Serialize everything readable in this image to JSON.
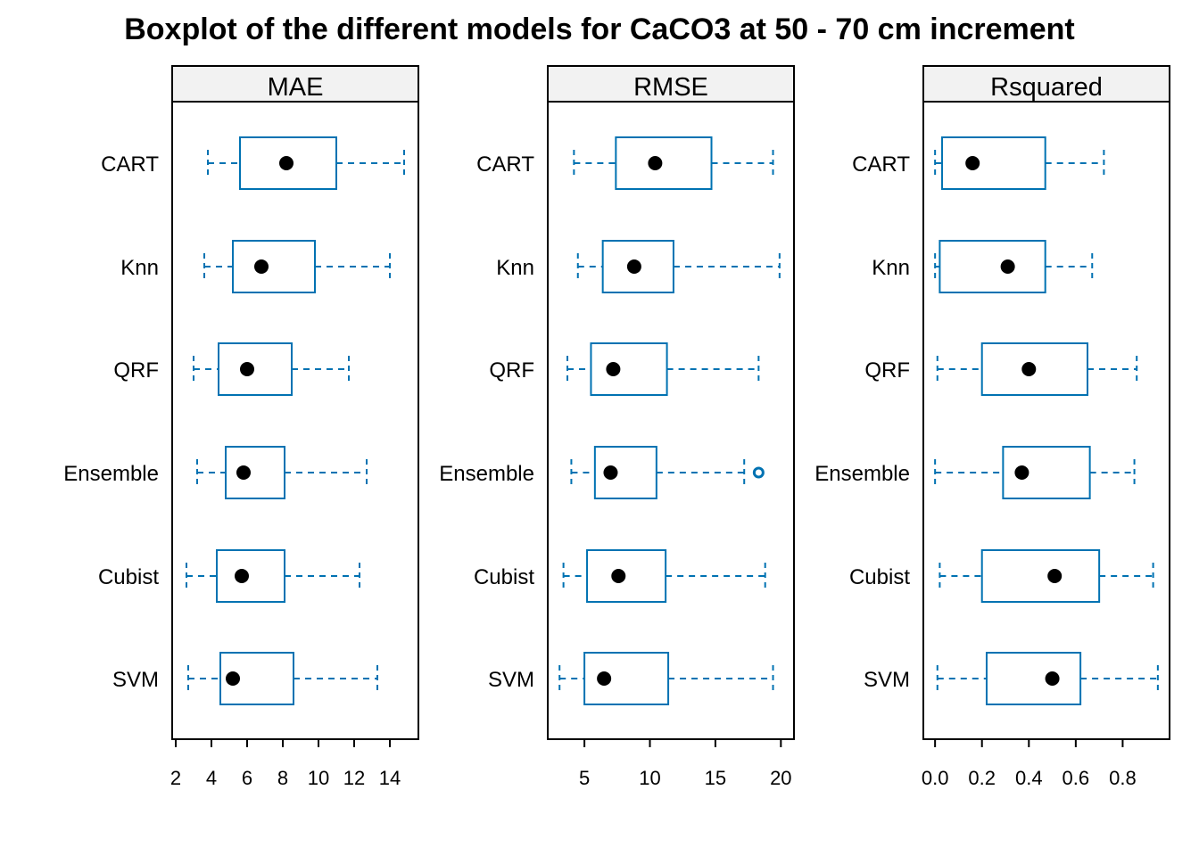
{
  "chart_data": {
    "type": "boxplot",
    "title": "Boxplot of the different models for CaCO3 at 50 - 70 cm increment",
    "categories": [
      "CART",
      "Knn",
      "QRF",
      "Ensemble",
      "Cubist",
      "SVM"
    ],
    "colors": {
      "box": "#0072B2",
      "median_dot": "#000000",
      "strip_fill": "#F2F2F2",
      "frame": "#000000"
    },
    "legend": "none",
    "grid": false,
    "panels": [
      {
        "name": "MAE",
        "xlim": [
          1.8,
          15.6
        ],
        "ticks": [
          2,
          4,
          6,
          8,
          10,
          12,
          14
        ],
        "boxes": [
          {
            "category": "CART",
            "min": 3.8,
            "q1": 5.6,
            "median": 8.2,
            "q3": 11.0,
            "max": 14.8,
            "outliers": []
          },
          {
            "category": "Knn",
            "min": 3.6,
            "q1": 5.2,
            "median": 6.8,
            "q3": 9.8,
            "max": 14.0,
            "outliers": []
          },
          {
            "category": "QRF",
            "min": 3.0,
            "q1": 4.4,
            "median": 6.0,
            "q3": 8.5,
            "max": 11.7,
            "outliers": []
          },
          {
            "category": "Ensemble",
            "min": 3.2,
            "q1": 4.8,
            "median": 5.8,
            "q3": 8.1,
            "max": 12.7,
            "outliers": []
          },
          {
            "category": "Cubist",
            "min": 2.6,
            "q1": 4.3,
            "median": 5.7,
            "q3": 8.1,
            "max": 12.3,
            "outliers": []
          },
          {
            "category": "SVM",
            "min": 2.7,
            "q1": 4.5,
            "median": 5.2,
            "q3": 8.6,
            "max": 13.3,
            "outliers": []
          }
        ]
      },
      {
        "name": "RMSE",
        "xlim": [
          2.2,
          21.0
        ],
        "ticks": [
          5,
          10,
          15,
          20
        ],
        "boxes": [
          {
            "category": "CART",
            "min": 4.2,
            "q1": 7.4,
            "median": 10.4,
            "q3": 14.7,
            "max": 19.4,
            "outliers": []
          },
          {
            "category": "Knn",
            "min": 4.5,
            "q1": 6.4,
            "median": 8.8,
            "q3": 11.8,
            "max": 19.9,
            "outliers": []
          },
          {
            "category": "QRF",
            "min": 3.7,
            "q1": 5.5,
            "median": 7.2,
            "q3": 11.3,
            "max": 18.3,
            "outliers": []
          },
          {
            "category": "Ensemble",
            "min": 4.0,
            "q1": 5.8,
            "median": 7.0,
            "q3": 10.5,
            "max": 17.2,
            "outliers": [
              18.3
            ]
          },
          {
            "category": "Cubist",
            "min": 3.4,
            "q1": 5.2,
            "median": 7.6,
            "q3": 11.2,
            "max": 18.8,
            "outliers": []
          },
          {
            "category": "SVM",
            "min": 3.1,
            "q1": 5.0,
            "median": 6.5,
            "q3": 11.4,
            "max": 19.4,
            "outliers": []
          }
        ]
      },
      {
        "name": "Rsquared",
        "xlim": [
          -0.05,
          1.0
        ],
        "ticks": [
          0.0,
          0.2,
          0.4,
          0.6,
          0.8
        ],
        "tick_labels": [
          "0.0",
          "0.2",
          "0.4",
          "0.6",
          "0.8"
        ],
        "boxes": [
          {
            "category": "CART",
            "min": 0.0,
            "q1": 0.03,
            "median": 0.16,
            "q3": 0.47,
            "max": 0.72,
            "outliers": []
          },
          {
            "category": "Knn",
            "min": 0.0,
            "q1": 0.02,
            "median": 0.31,
            "q3": 0.47,
            "max": 0.67,
            "outliers": []
          },
          {
            "category": "QRF",
            "min": 0.01,
            "q1": 0.2,
            "median": 0.4,
            "q3": 0.65,
            "max": 0.86,
            "outliers": []
          },
          {
            "category": "Ensemble",
            "min": 0.0,
            "q1": 0.29,
            "median": 0.37,
            "q3": 0.66,
            "max": 0.85,
            "outliers": []
          },
          {
            "category": "Cubist",
            "min": 0.02,
            "q1": 0.2,
            "median": 0.51,
            "q3": 0.7,
            "max": 0.93,
            "outliers": []
          },
          {
            "category": "SVM",
            "min": 0.01,
            "q1": 0.22,
            "median": 0.5,
            "q3": 0.62,
            "max": 0.95,
            "outliers": []
          }
        ]
      }
    ]
  }
}
